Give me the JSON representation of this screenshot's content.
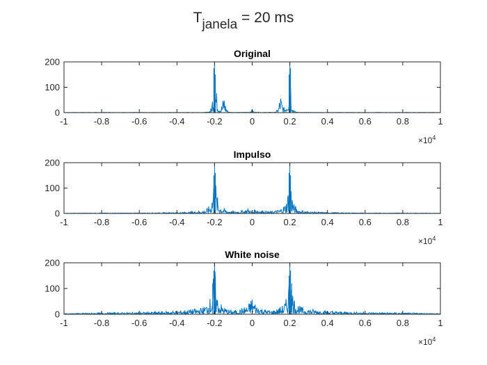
{
  "figure": {
    "title_main": "T",
    "title_sub": "janela",
    "title_rest": " = 20 ms"
  },
  "chart_data": [
    {
      "type": "line",
      "title": "Original",
      "xlim": [
        -10000,
        10000
      ],
      "ylim": [
        0,
        200
      ],
      "x_ticks": [
        -10000,
        -8000,
        -6000,
        -4000,
        -2000,
        0,
        2000,
        4000,
        6000,
        8000,
        10000
      ],
      "x_tick_labels": [
        "-1",
        "-0.8",
        "-0.6",
        "-0.4",
        "-0.2",
        "0",
        "0.2",
        "0.4",
        "0.6",
        "0.8",
        "1"
      ],
      "y_ticks": [
        0,
        100,
        200
      ],
      "y_tick_labels": [
        "0",
        "100",
        "200"
      ],
      "x_exponent_base": "×10",
      "x_exponent": "4",
      "grid": false,
      "series": [
        {
          "color": "#0072BD",
          "points": [
            [
              -10000,
              1
            ],
            [
              -8000,
              1
            ],
            [
              -6000,
              1
            ],
            [
              -4000,
              1
            ],
            [
              -2600,
              1
            ],
            [
              -2300,
              3
            ],
            [
              -2150,
              25
            ],
            [
              -2080,
              110
            ],
            [
              -2040,
              175
            ],
            [
              -2000,
              200
            ],
            [
              -1960,
              150
            ],
            [
              -1900,
              90
            ],
            [
              -1800,
              40
            ],
            [
              -1700,
              20
            ],
            [
              -1600,
              35
            ],
            [
              -1500,
              80
            ],
            [
              -1450,
              55
            ],
            [
              -1400,
              25
            ],
            [
              -1300,
              8
            ],
            [
              -1200,
              2
            ],
            [
              -600,
              1
            ],
            [
              -100,
              3
            ],
            [
              0,
              15
            ],
            [
              100,
              3
            ],
            [
              600,
              1
            ],
            [
              1200,
              2
            ],
            [
              1300,
              8
            ],
            [
              1400,
              25
            ],
            [
              1450,
              55
            ],
            [
              1500,
              80
            ],
            [
              1600,
              35
            ],
            [
              1700,
              20
            ],
            [
              1800,
              40
            ],
            [
              1900,
              90
            ],
            [
              1960,
              150
            ],
            [
              2000,
              200
            ],
            [
              2040,
              175
            ],
            [
              2080,
              110
            ],
            [
              2150,
              25
            ],
            [
              2300,
              3
            ],
            [
              2600,
              1
            ],
            [
              4000,
              1
            ],
            [
              6000,
              1
            ],
            [
              8000,
              1
            ],
            [
              10000,
              1
            ]
          ]
        }
      ]
    },
    {
      "type": "line",
      "title": "Impulso",
      "xlim": [
        -10000,
        10000
      ],
      "ylim": [
        0,
        200
      ],
      "x_ticks": [
        -10000,
        -8000,
        -6000,
        -4000,
        -2000,
        0,
        2000,
        4000,
        6000,
        8000,
        10000
      ],
      "x_tick_labels": [
        "-1",
        "-0.8",
        "-0.6",
        "-0.4",
        "-0.2",
        "0",
        "0.2",
        "0.4",
        "0.6",
        "0.8",
        "1"
      ],
      "y_ticks": [
        0,
        100,
        200
      ],
      "y_tick_labels": [
        "0",
        "100",
        "200"
      ],
      "x_exponent_base": "×10",
      "x_exponent": "4",
      "grid": false,
      "series": [
        {
          "color": "#0072BD",
          "points": [
            [
              -10000,
              1
            ],
            [
              -8000,
              2
            ],
            [
              -6000,
              2
            ],
            [
              -5000,
              3
            ],
            [
              -4000,
              4
            ],
            [
              -3500,
              6
            ],
            [
              -3000,
              8
            ],
            [
              -2600,
              12
            ],
            [
              -2400,
              20
            ],
            [
              -2200,
              40
            ],
            [
              -2100,
              95
            ],
            [
              -2040,
              150
            ],
            [
              -2000,
              200
            ],
            [
              -1960,
              160
            ],
            [
              -1900,
              90
            ],
            [
              -1800,
              45
            ],
            [
              -1600,
              25
            ],
            [
              -1400,
              15
            ],
            [
              -1200,
              12
            ],
            [
              -1000,
              8
            ],
            [
              -700,
              10
            ],
            [
              -500,
              12
            ],
            [
              -200,
              22
            ],
            [
              0,
              6
            ],
            [
              200,
              22
            ],
            [
              500,
              12
            ],
            [
              700,
              10
            ],
            [
              1000,
              8
            ],
            [
              1200,
              12
            ],
            [
              1400,
              15
            ],
            [
              1600,
              25
            ],
            [
              1800,
              45
            ],
            [
              1900,
              90
            ],
            [
              1960,
              160
            ],
            [
              2000,
              200
            ],
            [
              2040,
              150
            ],
            [
              2100,
              95
            ],
            [
              2200,
              40
            ],
            [
              2400,
              20
            ],
            [
              2600,
              12
            ],
            [
              3000,
              8
            ],
            [
              3500,
              6
            ],
            [
              4000,
              4
            ],
            [
              5000,
              3
            ],
            [
              6000,
              2
            ],
            [
              8000,
              2
            ],
            [
              10000,
              1
            ]
          ]
        }
      ]
    },
    {
      "type": "line",
      "title": "White noise",
      "xlim": [
        -10000,
        10000
      ],
      "ylim": [
        0,
        200
      ],
      "x_ticks": [
        -10000,
        -8000,
        -6000,
        -4000,
        -2000,
        0,
        2000,
        4000,
        6000,
        8000,
        10000
      ],
      "x_tick_labels": [
        "-1",
        "-0.8",
        "-0.6",
        "-0.4",
        "-0.2",
        "0",
        "0.2",
        "0.4",
        "0.6",
        "0.8",
        "1"
      ],
      "y_ticks": [
        0,
        100,
        200
      ],
      "y_tick_labels": [
        "0",
        "100",
        "200"
      ],
      "x_exponent_base": "×10",
      "x_exponent": "4",
      "grid": false,
      "series": [
        {
          "color": "#0072BD",
          "points": [
            [
              -10000,
              3
            ],
            [
              -8000,
              6
            ],
            [
              -6000,
              8
            ],
            [
              -5000,
              10
            ],
            [
              -4000,
              14
            ],
            [
              -3500,
              18
            ],
            [
              -3000,
              22
            ],
            [
              -2600,
              28
            ],
            [
              -2400,
              45
            ],
            [
              -2200,
              70
            ],
            [
              -2100,
              120
            ],
            [
              -2040,
              170
            ],
            [
              -2000,
              200
            ],
            [
              -1960,
              150
            ],
            [
              -1900,
              95
            ],
            [
              -1800,
              60
            ],
            [
              -1600,
              35
            ],
            [
              -1400,
              25
            ],
            [
              -1200,
              18
            ],
            [
              -1000,
              15
            ],
            [
              -700,
              20
            ],
            [
              -500,
              25
            ],
            [
              -200,
              40
            ],
            [
              0,
              70
            ],
            [
              200,
              40
            ],
            [
              500,
              25
            ],
            [
              700,
              20
            ],
            [
              1000,
              15
            ],
            [
              1200,
              18
            ],
            [
              1400,
              25
            ],
            [
              1600,
              35
            ],
            [
              1800,
              60
            ],
            [
              1900,
              95
            ],
            [
              1960,
              150
            ],
            [
              2000,
              200
            ],
            [
              2040,
              170
            ],
            [
              2100,
              120
            ],
            [
              2200,
              70
            ],
            [
              2400,
              45
            ],
            [
              2600,
              28
            ],
            [
              3000,
              22
            ],
            [
              3500,
              18
            ],
            [
              4000,
              14
            ],
            [
              5000,
              10
            ],
            [
              6000,
              8
            ],
            [
              8000,
              6
            ],
            [
              10000,
              3
            ]
          ]
        }
      ]
    }
  ]
}
